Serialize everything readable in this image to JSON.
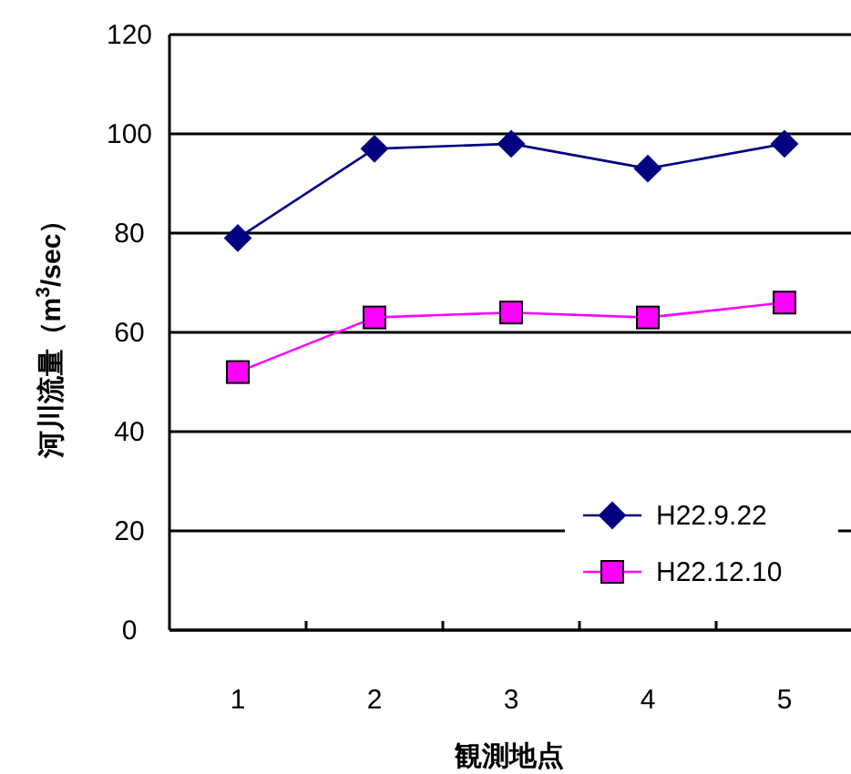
{
  "chart_data": {
    "type": "line",
    "xlabel": "観測地点",
    "ylabel": "河川流量（m$^{3}$/sec）",
    "categories": [
      "1",
      "2",
      "3",
      "4",
      "5"
    ],
    "series": [
      {
        "name": "H22.9.22",
        "color": "#000080",
        "marker": "diamond",
        "values": [
          79,
          97,
          98,
          93,
          98
        ]
      },
      {
        "name": "H22.12.10",
        "color": "#ff00ff",
        "marker": "square",
        "values": [
          52,
          63,
          64,
          63,
          66
        ]
      }
    ],
    "ylim": [
      0,
      120
    ],
    "yticks": [
      0,
      20,
      40,
      60,
      80,
      100,
      120
    ],
    "grid": "y",
    "legend": "bottom right"
  }
}
